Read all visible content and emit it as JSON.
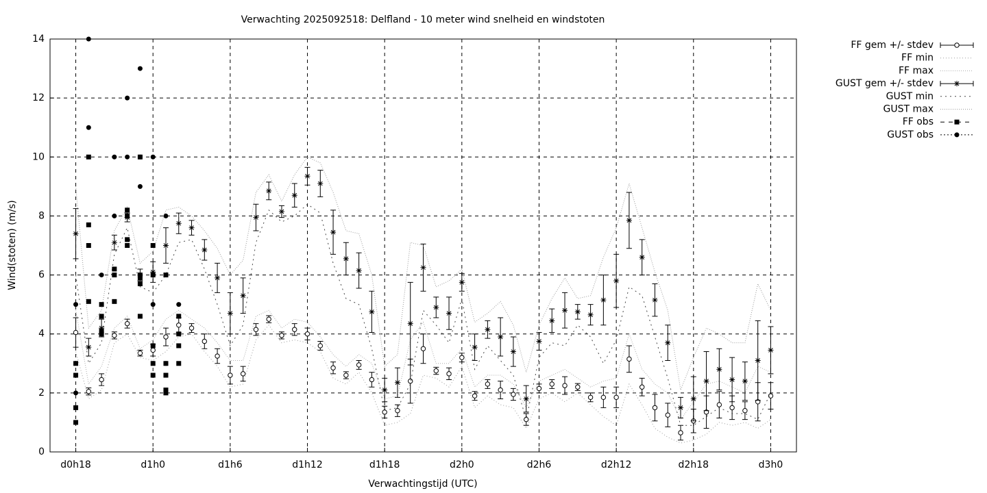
{
  "chart_data": {
    "type": "errorbar",
    "title": "Verwachting 2025092518: Delfland - 10 meter wind snelheid en windstoten",
    "x_label": "Verwachtingstijd (UTC)",
    "y_label": "Wind(stoten) (m/s)",
    "xlim": [
      16,
      74
    ],
    "ylim": [
      0,
      14
    ],
    "xticks": [
      {
        "value": 18,
        "label": "d0h18"
      },
      {
        "value": 24,
        "label": "d1h0"
      },
      {
        "value": 30,
        "label": "d1h6"
      },
      {
        "value": 36,
        "label": "d1h12"
      },
      {
        "value": 42,
        "label": "d1h18"
      },
      {
        "value": 48,
        "label": "d2h0"
      },
      {
        "value": 54,
        "label": "d2h6"
      },
      {
        "value": 60,
        "label": "d2h12"
      },
      {
        "value": 66,
        "label": "d2h18"
      },
      {
        "value": 72,
        "label": "d3h0"
      }
    ],
    "yticks": [
      0,
      2,
      4,
      6,
      8,
      10,
      12,
      14
    ],
    "grid": true,
    "legend": "right",
    "x": [
      18,
      19,
      20,
      21,
      22,
      23,
      24,
      25,
      26,
      27,
      28,
      29,
      30,
      31,
      32,
      33,
      34,
      35,
      36,
      37,
      38,
      39,
      40,
      41,
      42,
      43,
      44,
      45,
      46,
      47,
      48,
      49,
      50,
      51,
      52,
      53,
      54,
      55,
      56,
      57,
      58,
      59,
      60,
      61,
      62,
      63,
      64,
      65,
      66,
      67,
      68,
      69,
      70,
      71,
      72
    ],
    "series": [
      {
        "name": "FF gem +/- stdev",
        "kind": "errorbar",
        "marker": "circle",
        "color": "#000000",
        "values": [
          4.05,
          2.05,
          2.45,
          3.95,
          4.35,
          3.35,
          3.45,
          3.9,
          4.3,
          4.2,
          3.75,
          3.25,
          2.6,
          2.65,
          4.15,
          4.5,
          3.95,
          4.15,
          4.0,
          3.6,
          2.85,
          2.6,
          2.95,
          2.45,
          1.35,
          1.4,
          2.4,
          3.5,
          2.75,
          2.65,
          3.2,
          1.9,
          2.3,
          2.1,
          1.95,
          1.1,
          2.15,
          2.3,
          2.25,
          2.2,
          1.85,
          1.85,
          1.85,
          3.15,
          2.2,
          1.5,
          1.25,
          0.65,
          1.05,
          1.35,
          1.6,
          1.5,
          1.4,
          1.7,
          1.9
        ],
        "errors": [
          0.5,
          0.12,
          0.2,
          0.12,
          0.15,
          0.1,
          0.2,
          0.3,
          0.25,
          0.15,
          0.25,
          0.25,
          0.3,
          0.25,
          0.2,
          0.12,
          0.12,
          0.2,
          0.2,
          0.15,
          0.2,
          0.12,
          0.15,
          0.25,
          0.2,
          0.2,
          0.75,
          0.5,
          0.12,
          0.2,
          0.15,
          0.15,
          0.15,
          0.3,
          0.2,
          0.2,
          0.15,
          0.15,
          0.3,
          0.12,
          0.15,
          0.35,
          0.35,
          0.45,
          0.3,
          0.45,
          0.4,
          0.25,
          0.4,
          0.55,
          0.45,
          0.4,
          0.3,
          0.65,
          0.45
        ]
      },
      {
        "name": "FF min",
        "kind": "line",
        "dash": "1,3",
        "color": "#999999",
        "values": [
          3.4,
          1.8,
          2.1,
          3.7,
          4.0,
          3.2,
          3.1,
          3.4,
          3.9,
          4.0,
          3.4,
          2.9,
          2.2,
          2.3,
          3.8,
          4.3,
          3.7,
          3.8,
          3.7,
          3.4,
          2.5,
          2.3,
          2.7,
          2.0,
          0.9,
          1.0,
          1.3,
          2.6,
          2.5,
          2.2,
          2.9,
          1.5,
          1.9,
          1.6,
          1.5,
          0.8,
          1.8,
          2.0,
          1.7,
          2.0,
          1.6,
          1.2,
          0.9,
          2.3,
          1.6,
          0.8,
          0.5,
          0.3,
          0.4,
          0.6,
          1.0,
          0.9,
          1.0,
          0.8,
          1.1
        ]
      },
      {
        "name": "FF max",
        "kind": "line",
        "dash": "1,2",
        "color": "#aaaaaa",
        "values": [
          4.8,
          2.3,
          2.9,
          4.2,
          4.6,
          3.5,
          3.8,
          4.5,
          4.8,
          4.5,
          4.2,
          3.7,
          3.1,
          3.1,
          4.6,
          4.8,
          4.2,
          4.5,
          4.4,
          3.9,
          3.3,
          2.9,
          3.3,
          3.0,
          1.8,
          1.9,
          3.8,
          4.4,
          3.0,
          3.0,
          3.5,
          2.2,
          2.6,
          2.6,
          2.3,
          1.5,
          2.4,
          2.6,
          2.8,
          2.5,
          2.2,
          2.4,
          2.5,
          4.0,
          2.8,
          2.3,
          2.0,
          1.1,
          1.7,
          2.3,
          2.4,
          2.2,
          2.0,
          2.9,
          2.7
        ]
      },
      {
        "name": "GUST gem +/- stdev",
        "kind": "errorbar",
        "marker": "star",
        "color": "#000000",
        "values": [
          7.4,
          3.55,
          4.2,
          7.1,
          7.95,
          6.0,
          6.1,
          7.0,
          7.75,
          7.6,
          6.85,
          5.9,
          4.7,
          5.3,
          7.95,
          8.85,
          8.15,
          8.7,
          9.35,
          9.1,
          7.45,
          6.55,
          6.15,
          4.75,
          2.1,
          2.35,
          4.35,
          6.25,
          4.9,
          4.7,
          5.75,
          3.55,
          4.15,
          3.9,
          3.4,
          1.8,
          3.75,
          4.45,
          4.8,
          4.75,
          4.65,
          5.15,
          5.8,
          7.85,
          6.6,
          5.15,
          3.7,
          1.5,
          1.8,
          2.4,
          2.8,
          2.45,
          2.4,
          3.1,
          3.45
        ],
        "errors": [
          0.85,
          0.3,
          0.3,
          0.25,
          0.15,
          0.2,
          0.35,
          0.6,
          0.35,
          0.25,
          0.35,
          0.5,
          0.7,
          0.6,
          0.45,
          0.3,
          0.2,
          0.4,
          0.3,
          0.45,
          0.75,
          0.55,
          0.6,
          0.7,
          0.4,
          0.5,
          1.4,
          0.8,
          0.35,
          0.55,
          0.3,
          0.45,
          0.3,
          0.65,
          0.5,
          0.45,
          0.3,
          0.4,
          0.6,
          0.25,
          0.35,
          0.85,
          0.9,
          0.95,
          0.6,
          0.55,
          0.6,
          0.35,
          0.75,
          1.0,
          0.7,
          0.75,
          0.65,
          1.35,
          0.8
        ]
      },
      {
        "name": "GUST min",
        "kind": "line",
        "dash": "2,5",
        "color": "#444444",
        "values": [
          6.0,
          3.0,
          3.7,
          6.7,
          7.6,
          5.6,
          5.4,
          6.0,
          7.1,
          7.2,
          6.2,
          5.0,
          3.6,
          4.3,
          7.1,
          8.2,
          7.8,
          8.0,
          8.4,
          8.1,
          6.4,
          5.2,
          5.0,
          3.5,
          1.4,
          1.5,
          2.3,
          4.8,
          4.3,
          3.7,
          5.2,
          2.8,
          3.6,
          3.1,
          2.6,
          1.1,
          3.2,
          3.7,
          3.6,
          4.3,
          3.9,
          3.0,
          3.8,
          5.6,
          5.3,
          3.9,
          2.5,
          0.9,
          0.9,
          1.2,
          1.5,
          1.3,
          1.3,
          1.1,
          2.0
        ]
      },
      {
        "name": "GUST max",
        "kind": "line",
        "dash": "1,2",
        "color": "#999999",
        "values": [
          9.0,
          4.2,
          4.8,
          7.5,
          8.3,
          6.4,
          6.8,
          8.2,
          8.3,
          8.0,
          7.5,
          6.9,
          6.0,
          6.5,
          8.8,
          9.4,
          8.5,
          9.4,
          10.0,
          9.8,
          8.8,
          7.5,
          7.4,
          6.0,
          2.9,
          3.3,
          7.1,
          7.0,
          5.6,
          5.8,
          6.2,
          4.4,
          4.7,
          5.1,
          4.3,
          2.7,
          4.3,
          5.2,
          5.9,
          5.2,
          5.3,
          6.6,
          7.6,
          9.1,
          7.6,
          6.1,
          4.8,
          2.1,
          3.2,
          4.2,
          4.0,
          3.7,
          3.7,
          5.7,
          4.8
        ]
      },
      {
        "name": "FF obs",
        "kind": "points",
        "marker": "square",
        "color": "#000000",
        "x": [
          18,
          18,
          18,
          18,
          19,
          19,
          19,
          19,
          20,
          20,
          20,
          20,
          21,
          21,
          21,
          22,
          22,
          22,
          22,
          23,
          23,
          23,
          23,
          23,
          24,
          24,
          24,
          24,
          24,
          25,
          25,
          25,
          25,
          25,
          26,
          26,
          26,
          26
        ],
        "values": [
          3.0,
          2.6,
          1.5,
          1.0,
          10,
          7.7,
          7.0,
          5.1,
          5.0,
          4.6,
          4.1,
          4.0,
          6.2,
          6.0,
          5.1,
          8.2,
          8.0,
          7.2,
          7.0,
          10,
          6.0,
          5.9,
          5.7,
          4.6,
          7.0,
          6.0,
          3.6,
          3.0,
          2.6,
          6.0,
          3.0,
          2.6,
          2.1,
          2.0,
          4.6,
          4.0,
          3.6,
          3.0
        ]
      },
      {
        "name": "GUST obs",
        "kind": "points",
        "marker": "dot",
        "color": "#000000",
        "x": [
          18,
          18,
          19,
          19,
          20,
          21,
          21,
          22,
          22,
          23,
          23,
          23,
          24,
          24,
          25,
          25,
          26
        ],
        "values": [
          5,
          2,
          14,
          11,
          6,
          10,
          8,
          12,
          10,
          13,
          10,
          9,
          10,
          5,
          8,
          3,
          5
        ]
      }
    ]
  }
}
